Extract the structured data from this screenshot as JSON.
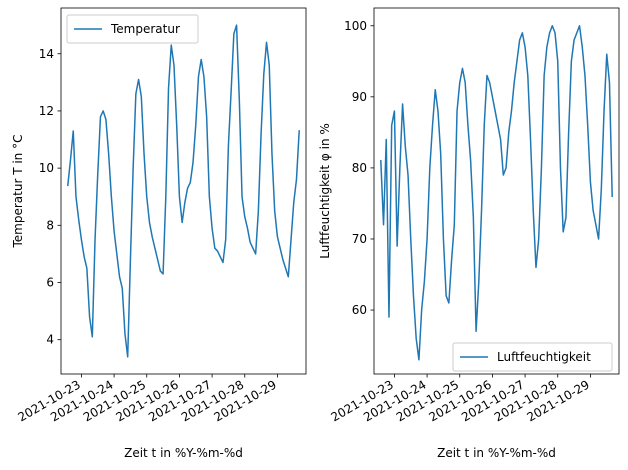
{
  "chart_data": [
    {
      "type": "line",
      "xlabel": "Zeit t in %Y-%m-%d",
      "ylabel": "Temperatur T in °C",
      "x_ticks": [
        "2021-10-23",
        "2021-10-24",
        "2021-10-25",
        "2021-10-26",
        "2021-10-27",
        "2021-10-28",
        "2021-10-29"
      ],
      "xlim": [
        "2021-10-22 09:00",
        "2021-10-29 21:00"
      ],
      "ylim": [
        2.8,
        15.6
      ],
      "y_ticks": [
        4,
        6,
        8,
        10,
        12,
        14
      ],
      "legend_position": "upper-left",
      "color": "#1f77b4",
      "series": [
        {
          "name": "Temperatur",
          "x": [
            "2021-10-22 14:00",
            "2021-10-22 16:00",
            "2021-10-22 18:00",
            "2021-10-22 20:00",
            "2021-10-22 22:00",
            "2021-10-23 00:00",
            "2021-10-23 02:00",
            "2021-10-23 04:00",
            "2021-10-23 06:00",
            "2021-10-23 08:00",
            "2021-10-23 10:00",
            "2021-10-23 12:00",
            "2021-10-23 14:00",
            "2021-10-23 16:00",
            "2021-10-23 18:00",
            "2021-10-23 20:00",
            "2021-10-23 22:00",
            "2021-10-24 00:00",
            "2021-10-24 02:00",
            "2021-10-24 04:00",
            "2021-10-24 06:00",
            "2021-10-24 08:00",
            "2021-10-24 10:00",
            "2021-10-24 12:00",
            "2021-10-24 14:00",
            "2021-10-24 16:00",
            "2021-10-24 18:00",
            "2021-10-24 20:00",
            "2021-10-24 22:00",
            "2021-10-25 00:00",
            "2021-10-25 02:00",
            "2021-10-25 04:00",
            "2021-10-25 06:00",
            "2021-10-25 08:00",
            "2021-10-25 10:00",
            "2021-10-25 12:00",
            "2021-10-25 14:00",
            "2021-10-25 16:00",
            "2021-10-25 18:00",
            "2021-10-25 20:00",
            "2021-10-25 22:00",
            "2021-10-26 00:00",
            "2021-10-26 02:00",
            "2021-10-26 04:00",
            "2021-10-26 06:00",
            "2021-10-26 08:00",
            "2021-10-26 10:00",
            "2021-10-26 12:00",
            "2021-10-26 14:00",
            "2021-10-26 16:00",
            "2021-10-26 18:00",
            "2021-10-26 20:00",
            "2021-10-26 22:00",
            "2021-10-27 00:00",
            "2021-10-27 02:00",
            "2021-10-27 04:00",
            "2021-10-27 06:00",
            "2021-10-27 08:00",
            "2021-10-27 10:00",
            "2021-10-27 12:00",
            "2021-10-27 14:00",
            "2021-10-27 16:00",
            "2021-10-27 18:00",
            "2021-10-27 20:00",
            "2021-10-27 22:00",
            "2021-10-28 00:00",
            "2021-10-28 02:00",
            "2021-10-28 04:00",
            "2021-10-28 06:00",
            "2021-10-28 08:00",
            "2021-10-28 10:00",
            "2021-10-28 12:00",
            "2021-10-28 14:00",
            "2021-10-28 16:00",
            "2021-10-28 18:00",
            "2021-10-28 20:00",
            "2021-10-28 22:00",
            "2021-10-29 00:00",
            "2021-10-29 02:00",
            "2021-10-29 04:00",
            "2021-10-29 06:00",
            "2021-10-29 08:00",
            "2021-10-29 10:00",
            "2021-10-29 12:00",
            "2021-10-29 14:00",
            "2021-10-29 16:00"
          ],
          "values": [
            9.4,
            10.3,
            11.3,
            9.0,
            8.2,
            7.5,
            6.9,
            6.5,
            4.8,
            4.1,
            7.5,
            9.8,
            11.8,
            12.0,
            11.7,
            10.5,
            9.0,
            7.8,
            7.0,
            6.2,
            5.8,
            4.2,
            3.4,
            6.8,
            10.0,
            12.6,
            13.1,
            12.5,
            10.5,
            9.0,
            8.1,
            7.6,
            7.2,
            6.8,
            6.4,
            6.3,
            9.0,
            12.8,
            14.3,
            13.6,
            11.5,
            9.0,
            8.1,
            8.8,
            9.3,
            9.5,
            10.2,
            11.5,
            13.2,
            13.8,
            13.2,
            11.8,
            9.0,
            7.9,
            7.2,
            7.1,
            6.9,
            6.7,
            7.5,
            10.8,
            12.7,
            14.7,
            15.0,
            12.4,
            9.0,
            8.3,
            7.9,
            7.4,
            7.2,
            7.0,
            8.5,
            11.2,
            13.3,
            14.4,
            13.6,
            10.5,
            8.5,
            7.6,
            7.2,
            6.8,
            6.5,
            6.2,
            7.5,
            8.8,
            9.6,
            11.3
          ]
        }
      ]
    },
    {
      "type": "line",
      "xlabel": "Zeit t in %Y-%m-%d",
      "ylabel": "Luftfeuchtigkeit φ in %",
      "x_ticks": [
        "2021-10-23",
        "2021-10-24",
        "2021-10-25",
        "2021-10-26",
        "2021-10-27",
        "2021-10-28",
        "2021-10-29"
      ],
      "xlim": [
        "2021-10-22 09:00",
        "2021-10-29 21:00"
      ],
      "ylim": [
        51,
        102.5
      ],
      "y_ticks": [
        60,
        70,
        80,
        90,
        100
      ],
      "legend_position": "lower-right",
      "color": "#1f77b4",
      "series": [
        {
          "name": "Luftfeuchtigkeit",
          "x": [
            "2021-10-22 14:00",
            "2021-10-22 16:00",
            "2021-10-22 18:00",
            "2021-10-22 20:00",
            "2021-10-22 22:00",
            "2021-10-23 00:00",
            "2021-10-23 02:00",
            "2021-10-23 04:00",
            "2021-10-23 06:00",
            "2021-10-23 08:00",
            "2021-10-23 10:00",
            "2021-10-23 12:00",
            "2021-10-23 14:00",
            "2021-10-23 16:00",
            "2021-10-23 18:00",
            "2021-10-23 20:00",
            "2021-10-23 22:00",
            "2021-10-24 00:00",
            "2021-10-24 02:00",
            "2021-10-24 04:00",
            "2021-10-24 06:00",
            "2021-10-24 08:00",
            "2021-10-24 10:00",
            "2021-10-24 12:00",
            "2021-10-24 14:00",
            "2021-10-24 16:00",
            "2021-10-24 18:00",
            "2021-10-24 20:00",
            "2021-10-24 22:00",
            "2021-10-25 00:00",
            "2021-10-25 02:00",
            "2021-10-25 04:00",
            "2021-10-25 06:00",
            "2021-10-25 08:00",
            "2021-10-25 10:00",
            "2021-10-25 12:00",
            "2021-10-25 14:00",
            "2021-10-25 16:00",
            "2021-10-25 18:00",
            "2021-10-25 20:00",
            "2021-10-25 22:00",
            "2021-10-26 00:00",
            "2021-10-26 02:00",
            "2021-10-26 04:00",
            "2021-10-26 06:00",
            "2021-10-26 08:00",
            "2021-10-26 10:00",
            "2021-10-26 12:00",
            "2021-10-26 14:00",
            "2021-10-26 16:00",
            "2021-10-26 18:00",
            "2021-10-26 20:00",
            "2021-10-26 22:00",
            "2021-10-27 00:00",
            "2021-10-27 02:00",
            "2021-10-27 04:00",
            "2021-10-27 06:00",
            "2021-10-27 08:00",
            "2021-10-27 10:00",
            "2021-10-27 12:00",
            "2021-10-27 14:00",
            "2021-10-27 16:00",
            "2021-10-27 18:00",
            "2021-10-27 20:00",
            "2021-10-27 22:00",
            "2021-10-28 00:00",
            "2021-10-28 02:00",
            "2021-10-28 04:00",
            "2021-10-28 06:00",
            "2021-10-28 08:00",
            "2021-10-28 10:00",
            "2021-10-28 12:00",
            "2021-10-28 14:00",
            "2021-10-28 16:00",
            "2021-10-28 18:00",
            "2021-10-28 20:00",
            "2021-10-28 22:00",
            "2021-10-29 00:00",
            "2021-10-29 02:00",
            "2021-10-29 04:00",
            "2021-10-29 06:00",
            "2021-10-29 08:00",
            "2021-10-29 10:00",
            "2021-10-29 12:00",
            "2021-10-29 14:00",
            "2021-10-29 16:00"
          ],
          "values": [
            81,
            72,
            84,
            59,
            86,
            88,
            69,
            80,
            89,
            83,
            79,
            70,
            62,
            56,
            53,
            60,
            64,
            70,
            80,
            86,
            91,
            88,
            82,
            70,
            62,
            61,
            67,
            72,
            88,
            92,
            94,
            92,
            86,
            81,
            73,
            57,
            64,
            74,
            86,
            93,
            92,
            90,
            88,
            86,
            84,
            79,
            80,
            85,
            88,
            92,
            95,
            98,
            99,
            97,
            93,
            84,
            74,
            66,
            70,
            80,
            93,
            97,
            99,
            100,
            99,
            95,
            80,
            71,
            73,
            85,
            95,
            98,
            99,
            100,
            97,
            93,
            86,
            78,
            74,
            72,
            70,
            77,
            88,
            96,
            92,
            76
          ]
        }
      ]
    }
  ]
}
